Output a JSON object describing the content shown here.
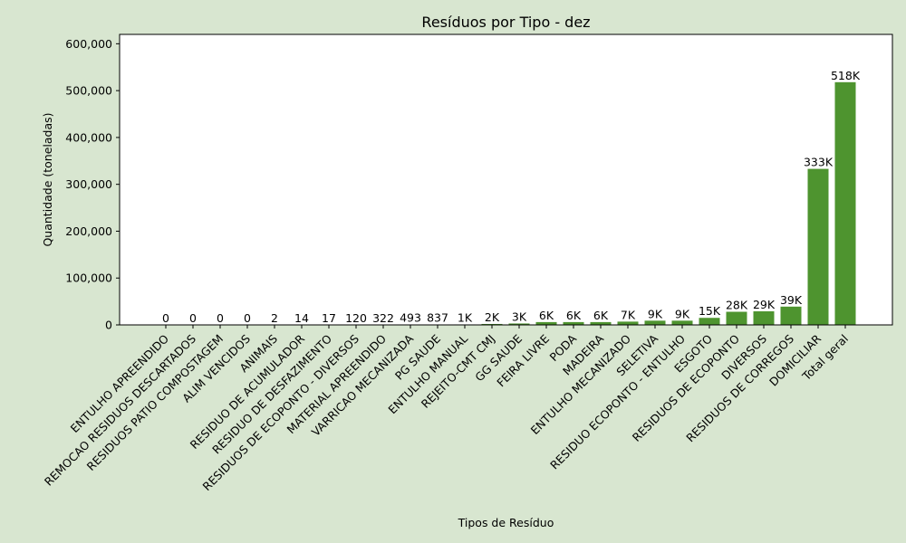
{
  "colors": {
    "background": "#d8e6d0",
    "plot_background": "#ffffff",
    "bar": "#4e942f",
    "axis": "#000000"
  },
  "chart_data": {
    "type": "bar",
    "title": "Resíduos por Tipo - dez",
    "xlabel": "Tipos de Resíduo",
    "ylabel": "Quantidade (toneladas)",
    "ylim": [
      0,
      620000
    ],
    "yticks": [
      0,
      100000,
      200000,
      300000,
      400000,
      500000,
      600000
    ],
    "ytick_labels": [
      "0",
      "100,000",
      "200,000",
      "300,000",
      "400,000",
      "500,000",
      "600,000"
    ],
    "grid": false,
    "categories": [
      "ENTULHO APREENDIDO",
      "REMOCAO RESIDUOS DESCARTADOS",
      "RESIDUOS PATIO COMPOSTAGEM",
      "ALIM VENCIDOS",
      "ANIMAIS",
      "RESIDUO DE ACUMULADOR",
      "RESIDUO DE DESFAZIMENTO",
      "RESIDUOS DE ECOPONTO - DIVERSOS",
      "MATERIAL APREENDIDO",
      "VARRICAO MECANIZADA",
      "PG SAUDE",
      "ENTULHO MANUAL",
      "REJEITO-CMT CMJ",
      "GG SAUDE",
      "FEIRA LIVRE",
      "PODA",
      "MADEIRA",
      "ENTULHO MECANIZADO",
      "SELETIVA",
      "RESIDUO ECOPONTO - ENTULHO",
      "ESGOTO",
      "RESIDUOS DE ECOPONTO",
      "DIVERSOS",
      "RESIDUOS DE CORREGOS",
      "DOMICILIAR",
      "Total geral"
    ],
    "values": [
      0,
      0,
      0,
      0,
      2,
      14,
      17,
      120,
      322,
      493,
      837,
      1000,
      2000,
      3000,
      6000,
      6000,
      6000,
      7000,
      9000,
      9000,
      15000,
      28000,
      29000,
      39000,
      333000,
      518000
    ],
    "data_labels": [
      "0",
      "0",
      "0",
      "0",
      "2",
      "14",
      "17",
      "120",
      "322",
      "493",
      "837",
      "1K",
      "2K",
      "3K",
      "6K",
      "6K",
      "6K",
      "7K",
      "9K",
      "9K",
      "15K",
      "28K",
      "29K",
      "39K",
      "333K",
      "518K"
    ]
  }
}
